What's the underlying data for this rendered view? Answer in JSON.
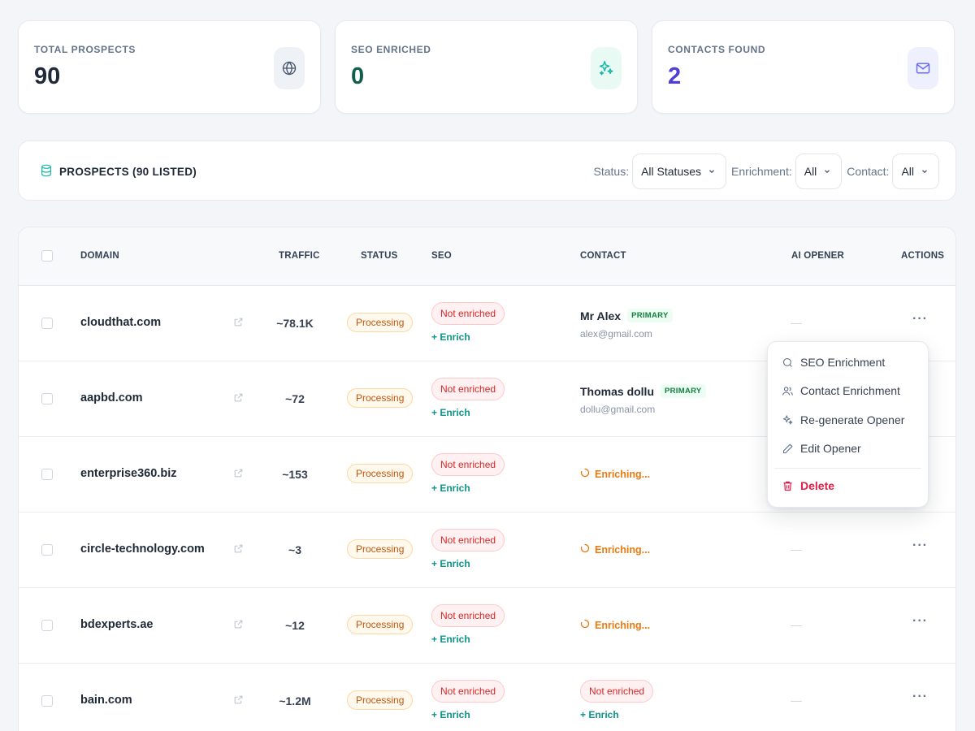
{
  "stats": [
    {
      "label": "TOTAL PROSPECTS",
      "value": "90",
      "value_color": "#1f2937",
      "icon": "globe-icon",
      "icon_bg": "#eef1f6"
    },
    {
      "label": "SEO ENRICHED",
      "value": "0",
      "value_color": "#0f5e4e",
      "icon": "sparkles-icon",
      "icon_bg": "#e9faf4"
    },
    {
      "label": "CONTACTS FOUND",
      "value": "2",
      "value_color": "#4f3fd9",
      "icon": "mail-icon",
      "icon_bg": "#eef0fd"
    }
  ],
  "toolbar": {
    "title": "PROSPECTS (90 LISTED)",
    "icon": "database-icon",
    "filters": [
      {
        "label": "Status:",
        "value": "All Statuses"
      },
      {
        "label": "Enrichment:",
        "value": "All"
      },
      {
        "label": "Contact:",
        "value": "All"
      }
    ]
  },
  "table": {
    "headers": {
      "domain": "DOMAIN",
      "traffic": "TRAFFIC",
      "status": "STATUS",
      "seo": "SEO",
      "contact": "CONTACT",
      "ai_opener": "AI OPENER",
      "actions": "ACTIONS"
    },
    "rows": [
      {
        "domain": "cloudthat.com",
        "traffic": "~78.1K",
        "status": "Processing",
        "seo": "Not enriched",
        "seo_action": "+ Enrich",
        "contact_type": "person",
        "contact_name": "Mr Alex",
        "contact_badge": "PRIMARY",
        "contact_email": "alex@gmail.com",
        "ai_opener": "—",
        "actions": "···"
      },
      {
        "domain": "aapbd.com",
        "traffic": "~72",
        "status": "Processing",
        "seo": "Not enriched",
        "seo_action": "+ Enrich",
        "contact_type": "person",
        "contact_name": "Thomas dollu",
        "contact_badge": "PRIMARY",
        "contact_email": "dollu@gmail.com",
        "ai_opener": "",
        "actions": ""
      },
      {
        "domain": "enterprise360.biz",
        "traffic": "~153",
        "status": "Processing",
        "seo": "Not enriched",
        "seo_action": "+ Enrich",
        "contact_type": "enriching",
        "contact_text": "Enriching...",
        "ai_opener": "",
        "actions": ""
      },
      {
        "domain": "circle-technology.com",
        "traffic": "~3",
        "status": "Processing",
        "seo": "Not enriched",
        "seo_action": "+ Enrich",
        "contact_type": "enriching",
        "contact_text": "Enriching...",
        "ai_opener": "—",
        "actions": "···"
      },
      {
        "domain": "bdexperts.ae",
        "traffic": "~12",
        "status": "Processing",
        "seo": "Not enriched",
        "seo_action": "+ Enrich",
        "contact_type": "enriching",
        "contact_text": "Enriching...",
        "ai_opener": "—",
        "actions": "···"
      },
      {
        "domain": "bain.com",
        "traffic": "~1.2M",
        "status": "Processing",
        "seo": "Not enriched",
        "seo_action": "+ Enrich",
        "contact_type": "not_enriched",
        "contact_text": "Not enriched",
        "contact_action": "+ Enrich",
        "ai_opener": "—",
        "actions": "···"
      }
    ]
  },
  "context_menu": {
    "items": [
      {
        "label": "SEO Enrichment",
        "icon": "search-icon"
      },
      {
        "label": "Contact Enrichment",
        "icon": "users-icon"
      },
      {
        "label": "Re-generate Opener",
        "icon": "sparkles-icon"
      },
      {
        "label": "Edit Opener",
        "icon": "pencil-icon"
      }
    ],
    "delete_label": "Delete",
    "delete_icon": "trash-icon",
    "danger_color": "#e11d48"
  }
}
